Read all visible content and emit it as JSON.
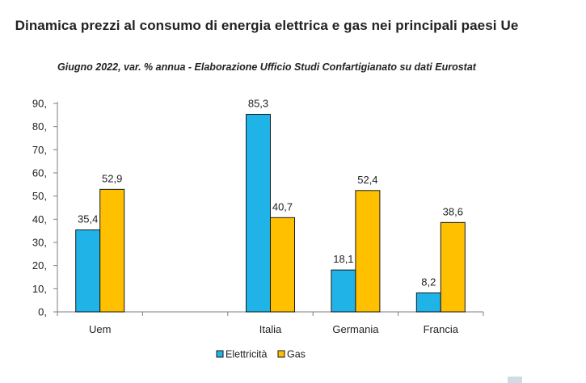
{
  "chart_data": {
    "type": "bar",
    "title": "Dinamica prezzi al consumo di energia elettrica e gas nei principali paesi Ue",
    "subtitle": "Giugno 2022, var. % annua - Elaborazione Ufficio Studi Confartigianato su dati Eurostat",
    "categories": [
      "Uem",
      "",
      "Italia",
      "Germania",
      "Francia"
    ],
    "series": [
      {
        "name": "Elettricità",
        "color": "#1FB3E8",
        "values": [
          35.4,
          null,
          85.3,
          18.1,
          8.2
        ],
        "labels": [
          "35,4",
          "",
          "85,3",
          "18,1",
          "8,2"
        ]
      },
      {
        "name": "Gas",
        "color": "#FFC000",
        "values": [
          52.9,
          null,
          40.7,
          52.4,
          38.6
        ],
        "labels": [
          "52,9",
          "",
          "40,7",
          "52,4",
          "38,6"
        ]
      }
    ],
    "ylim": [
      0,
      90
    ],
    "yticks": [
      0,
      10,
      20,
      30,
      40,
      50,
      60,
      70,
      80,
      90
    ],
    "ytick_labels": [
      "0,",
      "10,",
      "20,",
      "30,",
      "40,",
      "50,",
      "60,",
      "70,",
      "80,",
      "90,"
    ],
    "xlabel": "",
    "ylabel": "",
    "grid": false,
    "legend_position": "bottom-center"
  }
}
